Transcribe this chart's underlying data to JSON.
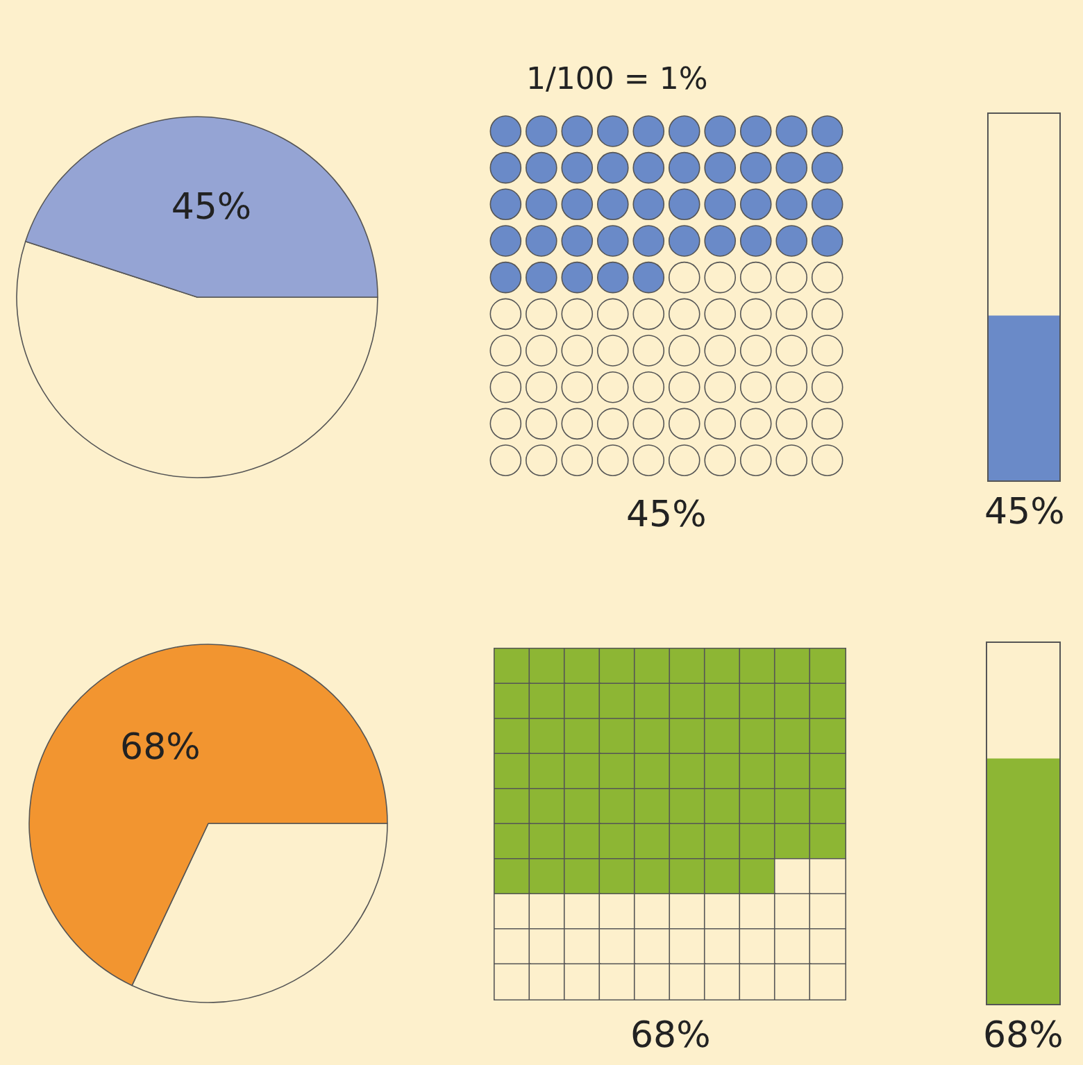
{
  "chart_data": [
    {
      "type": "pie",
      "categories": [
        null,
        null
      ],
      "values": [
        55,
        45
      ],
      "colors": [
        "#fdf0cc",
        "#95a4d4"
      ],
      "value_labels": [
        null,
        "45%"
      ]
    },
    {
      "type": "other",
      "values": [
        45
      ],
      "color": "#6a8ac8",
      "value_labels": [
        "45%"
      ],
      "annotations": [
        "1/100 = 1%"
      ]
    },
    {
      "type": "bar",
      "categories": [
        null
      ],
      "values": [
        45
      ],
      "color": "#6a8ac8",
      "ylim": [
        0,
        100
      ],
      "tick_labels": false,
      "value_labels": [
        "45%"
      ]
    },
    {
      "type": "pie",
      "categories": [
        null,
        null
      ],
      "values": [
        32,
        68
      ],
      "colors": [
        "#fdf0cc",
        "#f29530"
      ],
      "value_labels": [
        null,
        "68%"
      ]
    },
    {
      "type": "other",
      "values": [
        68
      ],
      "color": "#8db634",
      "value_labels": [
        "68%"
      ]
    },
    {
      "type": "bar",
      "categories": [
        null
      ],
      "values": [
        68
      ],
      "color": "#8db634",
      "ylim": [
        0,
        100
      ],
      "tick_labels": false,
      "value_labels": [
        "68%"
      ]
    }
  ]
}
